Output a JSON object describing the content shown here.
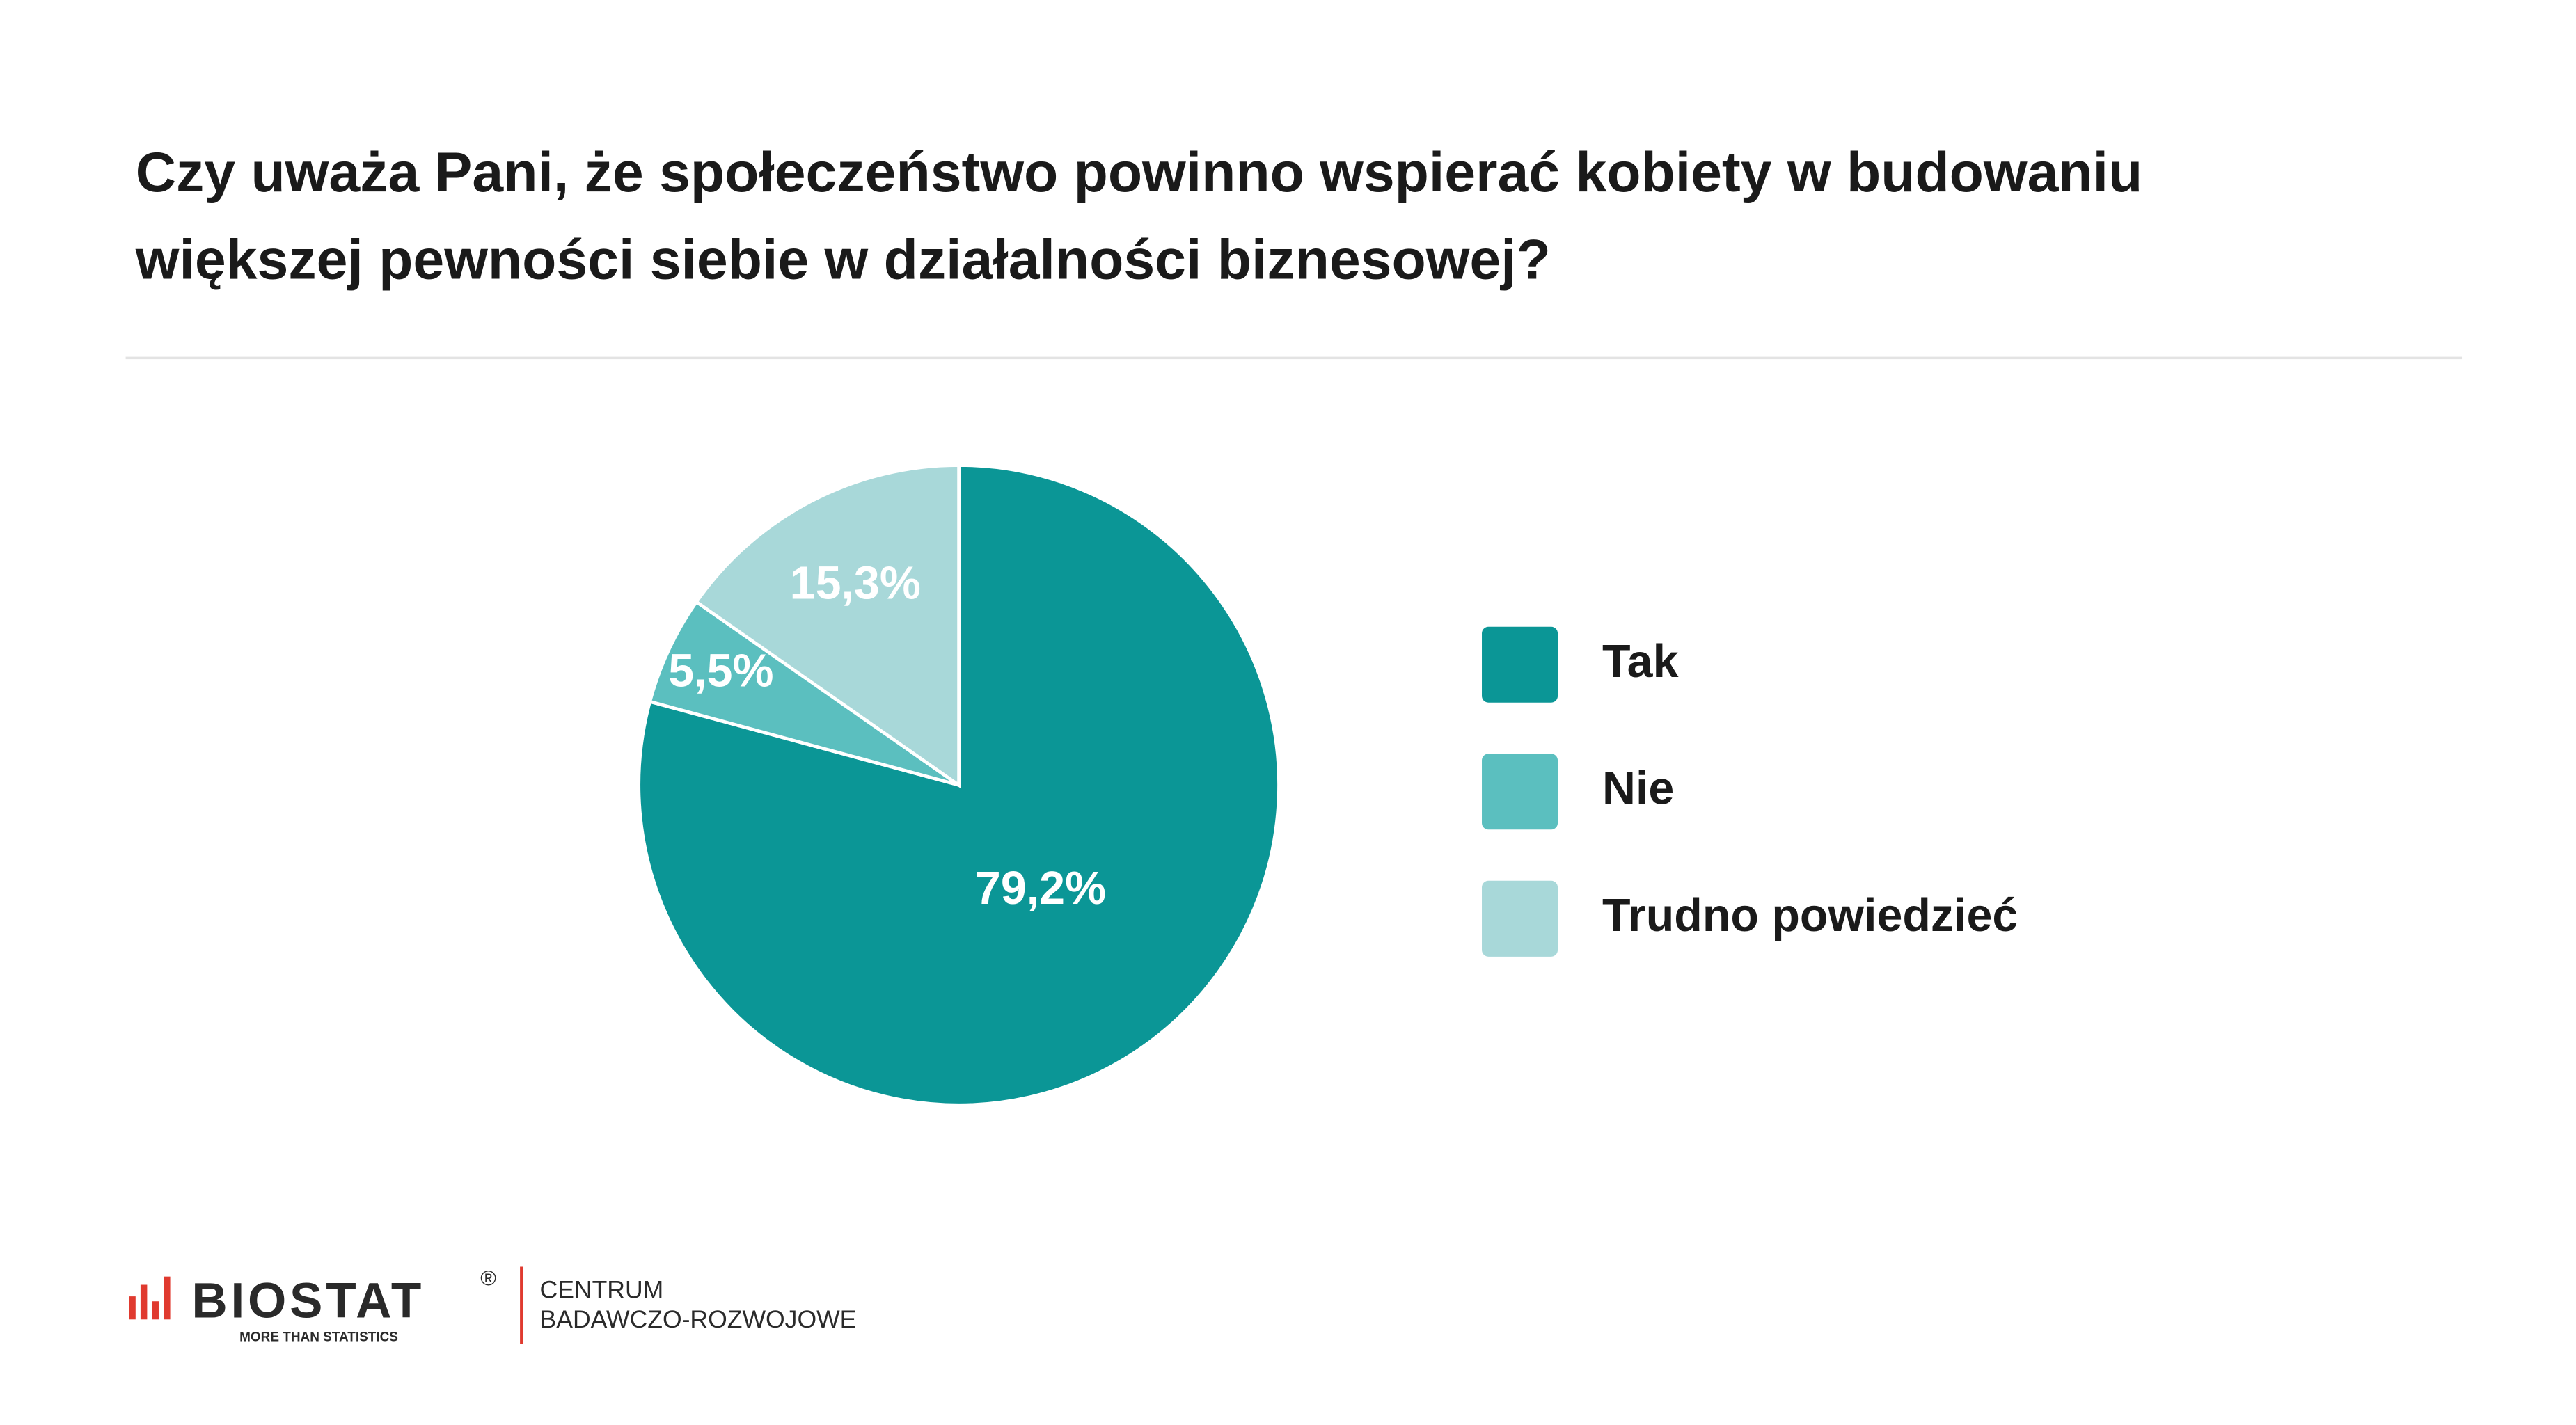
{
  "chart_data": {
    "type": "pie",
    "title_lines": [
      "Czy uważa Pani, że społeczeństwo powinno wspierać kobiety w budowaniu",
      "większej pewności siebie w działalności biznesowej?"
    ],
    "categories": [
      "Tak",
      "Nie",
      "Trudno powiedzieć"
    ],
    "values": [
      79.2,
      5.5,
      15.3
    ],
    "value_labels": [
      "79,2%",
      "5,5%",
      "15,3%"
    ],
    "colors": [
      "#0b9696",
      "#5bbfbf",
      "#a8d8d9"
    ],
    "legend": "right"
  },
  "footer": {
    "brand": "BIOSTAT",
    "registered": "®",
    "tagline": "MORE THAN STATISTICS",
    "unit_lines": [
      "CENTRUM",
      "BADAWCZO-ROZWOJOWE"
    ]
  }
}
